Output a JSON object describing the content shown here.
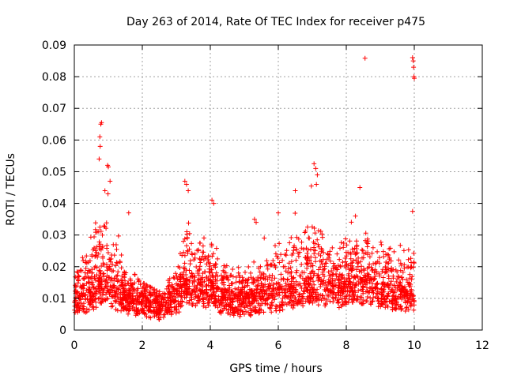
{
  "chart_data": {
    "type": "scatter",
    "title": "Day 263 of 2014, Rate Of TEC Index for receiver p475",
    "xlabel": "GPS time / hours",
    "ylabel": "ROTI / TECUs",
    "xlim": [
      0,
      12
    ],
    "ylim": [
      0,
      0.09
    ],
    "xticks": [
      0,
      2,
      4,
      6,
      8,
      10,
      12
    ],
    "xtick_labels": [
      "0",
      "2",
      "4",
      "6",
      "8",
      "10",
      "12"
    ],
    "yticks": [
      0,
      0.01,
      0.02,
      0.03,
      0.04,
      0.05,
      0.06,
      0.07,
      0.08,
      0.09
    ],
    "ytick_labels": [
      "0",
      "0.01",
      "0.02",
      "0.03",
      "0.04",
      "0.05",
      "0.06",
      "0.07",
      "0.08",
      "0.09"
    ],
    "grid": true,
    "marker": "+",
    "color": "#ff0000",
    "series": [
      {
        "name": "ROTI",
        "envelope": [
          {
            "x": 0.0,
            "base": 0.008,
            "spread": 0.008,
            "peak": 0.02
          },
          {
            "x": 0.2,
            "base": 0.009,
            "spread": 0.012,
            "peak": 0.03
          },
          {
            "x": 0.5,
            "base": 0.01,
            "spread": 0.015,
            "peak": 0.036
          },
          {
            "x": 0.8,
            "base": 0.012,
            "spread": 0.025,
            "peak": 0.066
          },
          {
            "x": 1.0,
            "base": 0.011,
            "spread": 0.02,
            "peak": 0.052
          },
          {
            "x": 1.2,
            "base": 0.01,
            "spread": 0.015,
            "peak": 0.036
          },
          {
            "x": 1.5,
            "base": 0.009,
            "spread": 0.01,
            "peak": 0.025
          },
          {
            "x": 2.0,
            "base": 0.008,
            "spread": 0.006,
            "peak": 0.015
          },
          {
            "x": 2.5,
            "base": 0.007,
            "spread": 0.005,
            "peak": 0.012
          },
          {
            "x": 3.0,
            "base": 0.008,
            "spread": 0.008,
            "peak": 0.02
          },
          {
            "x": 3.3,
            "base": 0.012,
            "spread": 0.02,
            "peak": 0.046
          },
          {
            "x": 3.6,
            "base": 0.011,
            "spread": 0.015,
            "peak": 0.034
          },
          {
            "x": 4.0,
            "base": 0.011,
            "spread": 0.018,
            "peak": 0.041
          },
          {
            "x": 4.3,
            "base": 0.009,
            "spread": 0.012,
            "peak": 0.03
          },
          {
            "x": 4.7,
            "base": 0.008,
            "spread": 0.008,
            "peak": 0.02
          },
          {
            "x": 5.0,
            "base": 0.008,
            "spread": 0.008,
            "peak": 0.025
          },
          {
            "x": 5.5,
            "base": 0.009,
            "spread": 0.01,
            "peak": 0.03
          },
          {
            "x": 6.0,
            "base": 0.01,
            "spread": 0.015,
            "peak": 0.037
          },
          {
            "x": 6.5,
            "base": 0.011,
            "spread": 0.016,
            "peak": 0.044
          },
          {
            "x": 7.0,
            "base": 0.012,
            "spread": 0.02,
            "peak": 0.052
          },
          {
            "x": 7.5,
            "base": 0.011,
            "spread": 0.016,
            "peak": 0.033
          },
          {
            "x": 8.0,
            "base": 0.011,
            "spread": 0.016,
            "peak": 0.036
          },
          {
            "x": 8.5,
            "base": 0.012,
            "spread": 0.018,
            "peak": 0.045
          },
          {
            "x": 9.0,
            "base": 0.011,
            "spread": 0.015,
            "peak": 0.032
          },
          {
            "x": 9.5,
            "base": 0.01,
            "spread": 0.013,
            "peak": 0.03
          },
          {
            "x": 10.0,
            "base": 0.009,
            "spread": 0.014,
            "peak": 0.037
          }
        ],
        "highlights": [
          {
            "x": 0.78,
            "y": 0.065
          },
          {
            "x": 0.8,
            "y": 0.0655
          },
          {
            "x": 0.75,
            "y": 0.061
          },
          {
            "x": 0.76,
            "y": 0.058
          },
          {
            "x": 0.73,
            "y": 0.054
          },
          {
            "x": 0.98,
            "y": 0.052
          },
          {
            "x": 1.0,
            "y": 0.0515
          },
          {
            "x": 1.05,
            "y": 0.047
          },
          {
            "x": 0.9,
            "y": 0.044
          },
          {
            "x": 1.6,
            "y": 0.037
          },
          {
            "x": 3.25,
            "y": 0.047
          },
          {
            "x": 3.3,
            "y": 0.046
          },
          {
            "x": 3.35,
            "y": 0.044
          },
          {
            "x": 4.05,
            "y": 0.041
          },
          {
            "x": 4.1,
            "y": 0.04
          },
          {
            "x": 5.3,
            "y": 0.035
          },
          {
            "x": 5.35,
            "y": 0.034
          },
          {
            "x": 6.5,
            "y": 0.044
          },
          {
            "x": 7.05,
            "y": 0.0525
          },
          {
            "x": 7.1,
            "y": 0.051
          },
          {
            "x": 7.15,
            "y": 0.049
          },
          {
            "x": 7.12,
            "y": 0.046
          },
          {
            "x": 8.4,
            "y": 0.045
          },
          {
            "x": 8.55,
            "y": 0.0858
          },
          {
            "x": 9.95,
            "y": 0.086
          },
          {
            "x": 9.97,
            "y": 0.085
          },
          {
            "x": 9.98,
            "y": 0.083
          },
          {
            "x": 9.99,
            "y": 0.08
          },
          {
            "x": 10.0,
            "y": 0.0795
          },
          {
            "x": 9.95,
            "y": 0.0375
          },
          {
            "x": 6.0,
            "y": 0.037
          }
        ]
      }
    ]
  }
}
